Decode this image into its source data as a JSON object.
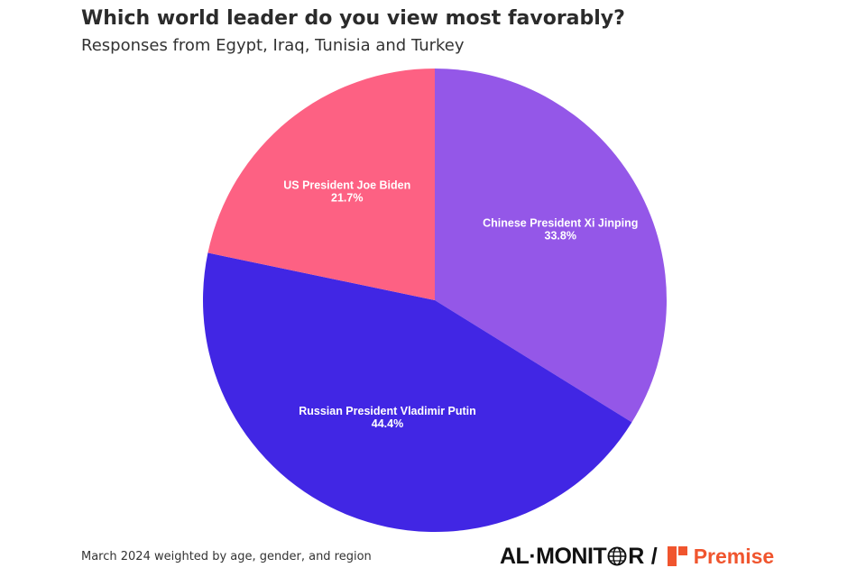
{
  "title": "Which world leader do you view most favorably?",
  "subtitle": "Responses from Egypt, Iraq, Tunisia and Turkey",
  "footnote": "March 2024 weighted by age, gender, and region",
  "logos": {
    "almonitor_before": "AL·MONIT",
    "almonitor_after": "R",
    "separator": "/",
    "premise": "Premise",
    "premise_color": "#f0552e"
  },
  "chart_data": {
    "type": "pie",
    "title": "Which world leader do you view most favorably?",
    "subtitle": "Responses from Egypt, Iraq, Tunisia and Turkey",
    "start": "12 o'clock, clockwise",
    "slices": [
      {
        "label": "Chinese President Xi Jinping",
        "value": 33.8,
        "value_label": "33.8%",
        "color": "#9457e8"
      },
      {
        "label": "Russian President Vladimir Putin",
        "value": 44.4,
        "value_label": "44.4%",
        "color": "#4126e4"
      },
      {
        "label": "US President Joe Biden",
        "value": 21.7,
        "value_label": "21.7%",
        "color": "#fd6183"
      }
    ]
  }
}
